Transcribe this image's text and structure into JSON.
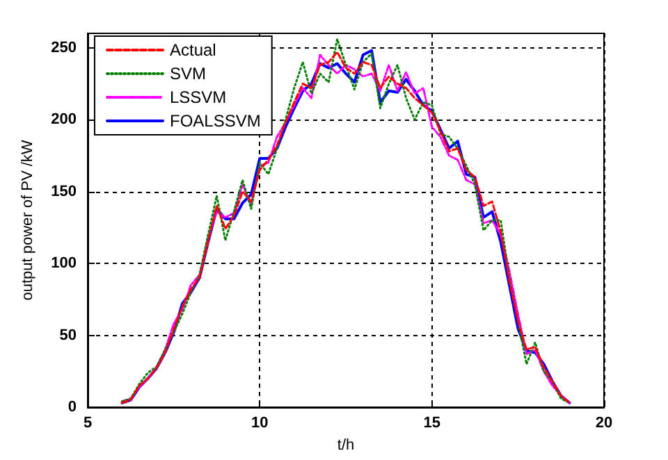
{
  "chart_data": {
    "type": "line",
    "xlabel": "t/h",
    "ylabel": "output power of PV /kW",
    "x": [
      6,
      6.25,
      6.5,
      6.75,
      7,
      7.25,
      7.5,
      7.75,
      8,
      8.25,
      8.5,
      8.75,
      9,
      9.25,
      9.5,
      9.75,
      10,
      10.25,
      10.5,
      10.75,
      11,
      11.25,
      11.5,
      11.75,
      12,
      12.25,
      12.5,
      12.75,
      13,
      13.25,
      13.5,
      13.75,
      14,
      14.25,
      14.5,
      14.75,
      15,
      15.25,
      15.5,
      15.75,
      16,
      16.25,
      16.5,
      16.75,
      17,
      17.25,
      17.5,
      17.75,
      18,
      18.25,
      18.5,
      18.75,
      19
    ],
    "series": [
      {
        "name": "Actual",
        "color": "#ff0000",
        "line_style": "dashed",
        "values": [
          3,
          5,
          15,
          20,
          27,
          38,
          54,
          70,
          82,
          90,
          115,
          140,
          124,
          133,
          150,
          143,
          165,
          172,
          182,
          198,
          212,
          225,
          222,
          238,
          240,
          247,
          236,
          232,
          240,
          238,
          222,
          230,
          225,
          222,
          215,
          210,
          205,
          192,
          178,
          180,
          165,
          160,
          140,
          143,
          122,
          88,
          60,
          40,
          42,
          28,
          18,
          8,
          3
        ]
      },
      {
        "name": "SVM",
        "color": "#008000",
        "line_style": "dotted",
        "values": [
          4,
          6,
          16,
          24,
          28,
          40,
          52,
          65,
          80,
          92,
          120,
          147,
          116,
          136,
          158,
          138,
          170,
          162,
          180,
          200,
          222,
          240,
          218,
          232,
          226,
          256,
          238,
          221,
          240,
          246,
          208,
          225,
          238,
          215,
          200,
          212,
          210,
          190,
          188,
          180,
          168,
          155,
          123,
          130,
          130,
          90,
          60,
          30,
          45,
          25,
          18,
          6,
          3
        ]
      },
      {
        "name": "LSSVM",
        "color": "#ff00ff",
        "line_style": "dashdot",
        "values": [
          4,
          6,
          14,
          20,
          28,
          40,
          58,
          68,
          85,
          92,
          118,
          136,
          132,
          135,
          155,
          140,
          168,
          170,
          188,
          198,
          210,
          222,
          215,
          245,
          238,
          232,
          238,
          235,
          230,
          232,
          220,
          238,
          220,
          233,
          218,
          222,
          195,
          188,
          175,
          172,
          158,
          155,
          128,
          130,
          120,
          95,
          65,
          37,
          40,
          25,
          15,
          8,
          3
        ]
      },
      {
        "name": "FOALSSVM",
        "color": "#0000ff",
        "line_style": "solid",
        "values": [
          3,
          5,
          14,
          20,
          27,
          38,
          52,
          72,
          80,
          90,
          115,
          138,
          131,
          131,
          142,
          148,
          173,
          173,
          180,
          195,
          208,
          220,
          225,
          239,
          236,
          239,
          232,
          226,
          245,
          248,
          212,
          220,
          219,
          228,
          220,
          210,
          206,
          193,
          180,
          185,
          162,
          160,
          132,
          136,
          115,
          85,
          55,
          39,
          38,
          30,
          18,
          8,
          3
        ]
      }
    ],
    "xlim": [
      5,
      20
    ],
    "xticks": [
      5,
      10,
      15,
      20
    ],
    "ylim": [
      0,
      260
    ],
    "yticks": [
      0,
      50,
      100,
      150,
      200,
      250
    ],
    "grid": true,
    "legend": "top left",
    "marker": "none"
  }
}
